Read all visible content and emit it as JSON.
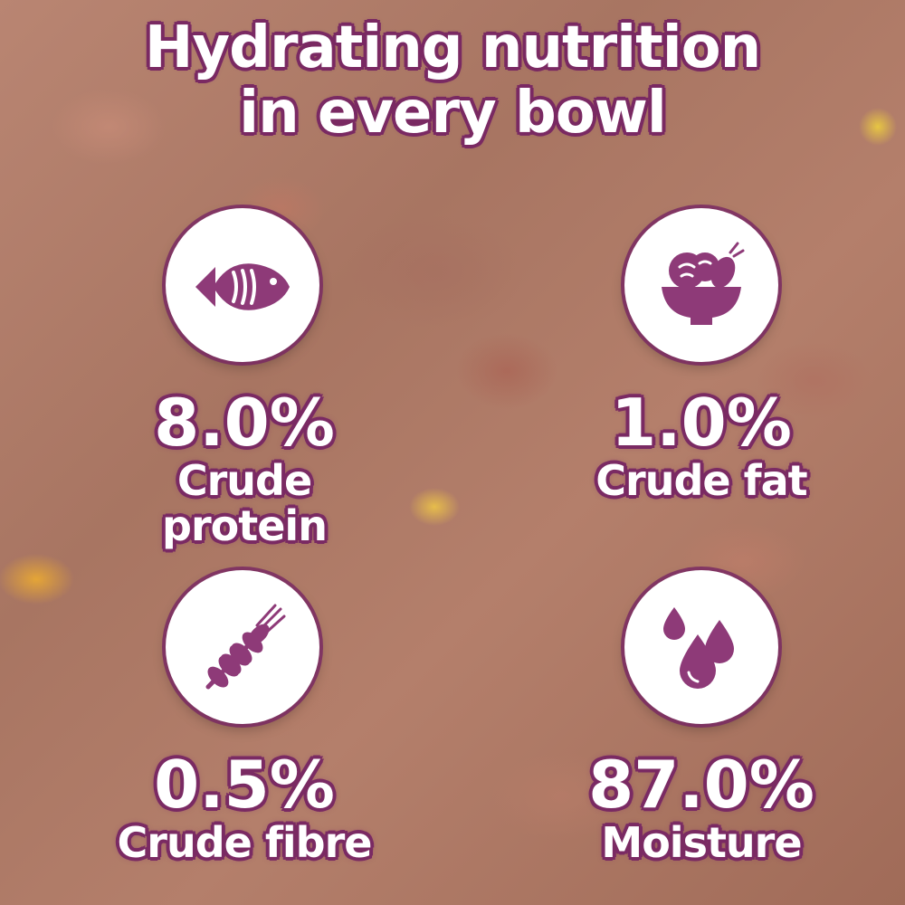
{
  "heading": {
    "line1": "Hydrating nutrition",
    "line2": "in every bowl"
  },
  "colors": {
    "accent": "#7a2a63",
    "icon_fill": "#8e3a78",
    "badge_bg": "#ffffff"
  },
  "nutrients": [
    {
      "icon": "fish-icon",
      "value": "8.0%",
      "label": "Crude protein"
    },
    {
      "icon": "salad-bowl-icon",
      "value": "1.0%",
      "label": "Crude fat"
    },
    {
      "icon": "wheat-icon",
      "value": "0.5%",
      "label": "Crude fibre"
    },
    {
      "icon": "water-drops-icon",
      "value": "87.0%",
      "label": "Moisture"
    }
  ]
}
